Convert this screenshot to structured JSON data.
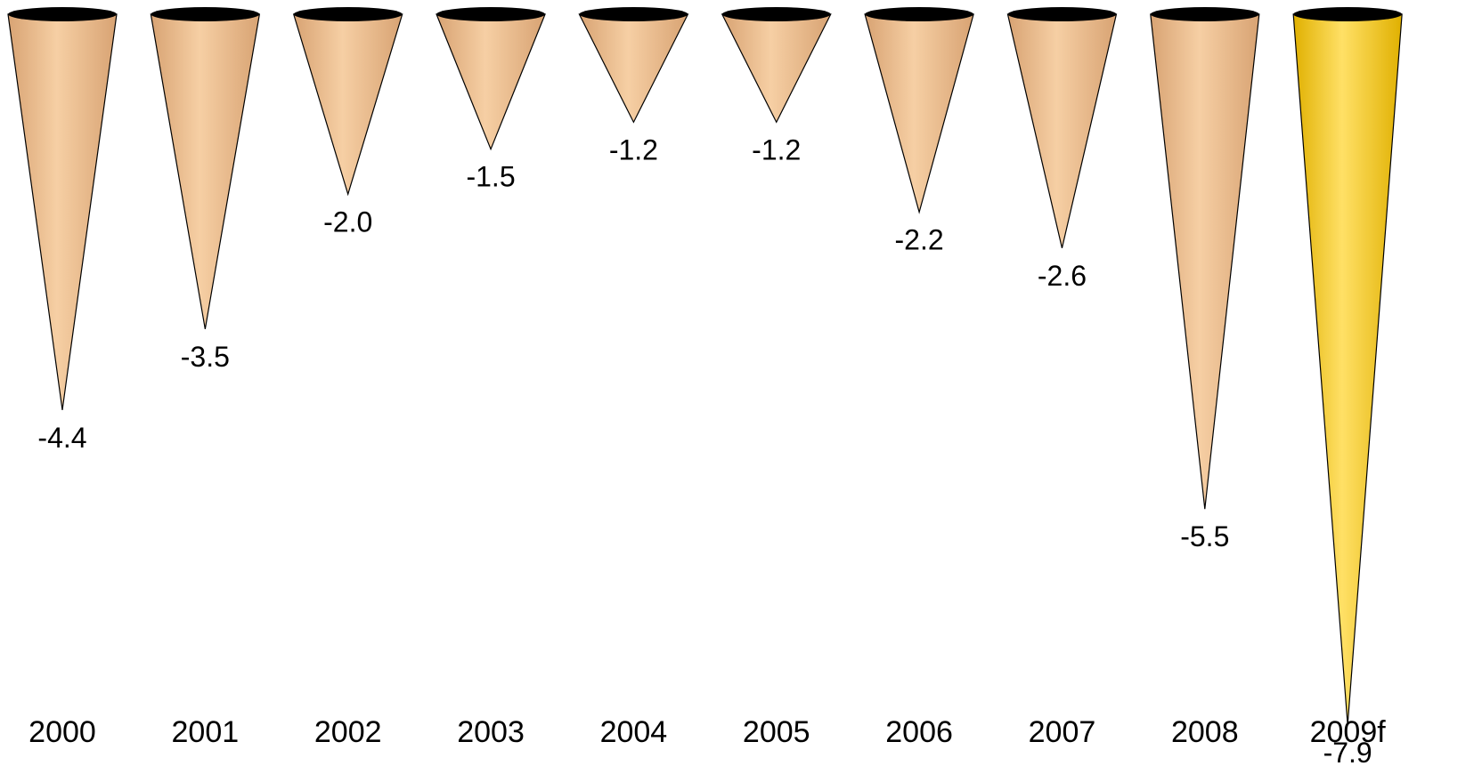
{
  "chart_data": {
    "type": "bar",
    "style": "inverted-cone",
    "categories": [
      "2000",
      "2001",
      "2002",
      "2003",
      "2004",
      "2005",
      "2006",
      "2007",
      "2008",
      "2009f"
    ],
    "values": [
      -4.4,
      -3.5,
      -2.0,
      -1.5,
      -1.2,
      -1.2,
      -2.2,
      -2.6,
      -5.5,
      -7.9
    ],
    "value_labels": [
      "-4.4",
      "-3.5",
      "-2.0",
      "-1.5",
      "-1.2",
      "-1.2",
      "-2.2",
      "-2.6",
      "-5.5",
      "-7.9"
    ],
    "ylim": [
      -8,
      0
    ],
    "grid": false,
    "title": "",
    "xlabel": "",
    "ylabel": "",
    "colors": {
      "cone_light": "#f6cfa4",
      "cone_dark": "#d8a373",
      "highlight_light": "#ffe066",
      "highlight_dark": "#e0b000",
      "rim": "#000000",
      "outline": "#000000"
    },
    "highlight_categories": [
      "2009f"
    ]
  }
}
